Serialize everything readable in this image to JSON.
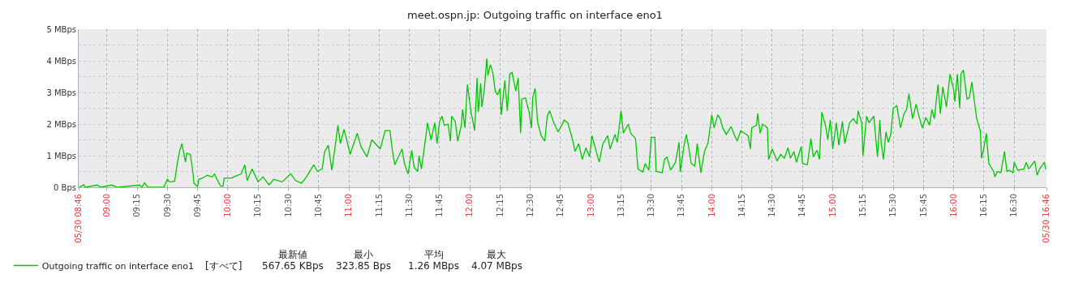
{
  "chart_data": {
    "type": "line",
    "title": "meet.ospn.jp: Outgoing traffic on interface eno1",
    "x": [
      8.77,
      8.81,
      8.82,
      8.92,
      8.95,
      9.04,
      9.09,
      9.27,
      9.29,
      9.31,
      9.34,
      9.47,
      9.5,
      9.52,
      9.56,
      9.58,
      9.6,
      9.62,
      9.65,
      9.66,
      9.69,
      9.71,
      9.72,
      9.75,
      9.76,
      9.79,
      9.83,
      9.87,
      9.89,
      9.91,
      9.94,
      9.96,
      9.97,
      10.03,
      10.07,
      10.11,
      10.14,
      10.16,
      10.2,
      10.25,
      10.29,
      10.34,
      10.38,
      10.45,
      10.52,
      10.56,
      10.61,
      10.65,
      10.71,
      10.74,
      10.78,
      10.8,
      10.83,
      10.86,
      10.89,
      10.91,
      10.93,
      10.96,
      10.99,
      11.01,
      11.07,
      11.1,
      11.15,
      11.19,
      11.26,
      11.3,
      11.34,
      11.36,
      11.38,
      11.44,
      11.46,
      11.49,
      11.52,
      11.54,
      11.57,
      11.58,
      11.6,
      11.63,
      11.64,
      11.65,
      11.68,
      11.71,
      11.73,
      11.75,
      11.77,
      11.79,
      11.82,
      11.84,
      11.85,
      11.88,
      11.9,
      11.93,
      11.94,
      11.96,
      11.98,
      12.01,
      12.03,
      12.04,
      12.06,
      12.07,
      12.09,
      12.1,
      12.12,
      12.14,
      12.15,
      12.17,
      12.19,
      12.21,
      12.23,
      12.25,
      12.26,
      12.29,
      12.31,
      12.33,
      12.35,
      12.38,
      12.4,
      12.42,
      12.43,
      12.46,
      12.49,
      12.51,
      12.52,
      12.54,
      12.56,
      12.59,
      12.62,
      12.64,
      12.66,
      12.69,
      12.73,
      12.76,
      12.78,
      12.81,
      12.85,
      12.87,
      12.9,
      12.93,
      12.96,
      12.99,
      13.01,
      13.04,
      13.07,
      13.1,
      13.14,
      13.16,
      13.2,
      13.22,
      13.25,
      13.27,
      13.31,
      13.33,
      13.37,
      13.39,
      13.43,
      13.45,
      13.48,
      13.5,
      13.53,
      13.54,
      13.59,
      13.61,
      13.63,
      13.66,
      13.7,
      13.73,
      13.74,
      13.77,
      13.79,
      13.81,
      13.83,
      13.86,
      13.88,
      13.91,
      13.94,
      13.97,
      14.0,
      14.02,
      14.05,
      14.07,
      14.09,
      14.12,
      14.16,
      14.19,
      14.21,
      14.24,
      14.27,
      14.3,
      14.32,
      14.33,
      14.37,
      14.38,
      14.4,
      14.42,
      14.46,
      14.47,
      14.5,
      14.54,
      14.57,
      14.6,
      14.63,
      14.65,
      14.68,
      14.7,
      14.74,
      14.75,
      14.79,
      14.82,
      14.84,
      14.87,
      14.89,
      14.91,
      14.94,
      14.96,
      14.98,
      15.0,
      15.03,
      15.05,
      15.08,
      15.1,
      15.14,
      15.17,
      15.2,
      15.21,
      15.24,
      15.25,
      15.28,
      15.3,
      15.34,
      15.35,
      15.37,
      15.39,
      15.4,
      15.42,
      15.44,
      15.46,
      15.48,
      15.5,
      15.53,
      15.56,
      15.59,
      15.61,
      15.63,
      15.66,
      15.69,
      15.71,
      15.74,
      15.77,
      15.8,
      15.82,
      15.84,
      15.87,
      15.89,
      15.91,
      15.94,
      15.96,
      15.97,
      16.0,
      16.01,
      16.03,
      16.05,
      16.06,
      16.08,
      16.11,
      16.13,
      16.15,
      16.17,
      16.19,
      16.22,
      16.23,
      16.25,
      16.27,
      16.29,
      16.33,
      16.34,
      16.36,
      16.39,
      16.42,
      16.44,
      16.46,
      16.49,
      16.5,
      16.53,
      16.58,
      16.6,
      16.62,
      16.67,
      16.69,
      16.71,
      16.75,
      16.76
    ],
    "series": [
      {
        "name": "Outgoing traffic on interface eno1",
        "color": "#00c800",
        "values": [
          0,
          0.08,
          0,
          0.07,
          0,
          0.07,
          0,
          0.07,
          0,
          0.14,
          0,
          0,
          0.25,
          0.17,
          0.19,
          0.71,
          1.13,
          1.38,
          0.79,
          1.08,
          1.04,
          0.5,
          0.13,
          0.02,
          0.25,
          0.29,
          0.38,
          0.33,
          0.42,
          0.25,
          0.04,
          0.03,
          0.29,
          0.29,
          0.36,
          0.42,
          0.71,
          0.21,
          0.58,
          0.17,
          0.33,
          0.08,
          0.25,
          0.17,
          0.43,
          0.21,
          0.13,
          0.33,
          0.71,
          0.5,
          0.58,
          1.13,
          1.33,
          0.54,
          1.38,
          1.96,
          1.38,
          1.83,
          1.38,
          1.04,
          1.71,
          1.29,
          0.96,
          1.5,
          1.21,
          1.79,
          1.79,
          1.17,
          0.71,
          1.21,
          0.75,
          0.42,
          1.17,
          0.63,
          0.5,
          1.0,
          0.58,
          1.42,
          1.71,
          2.04,
          1.5,
          2.04,
          1.38,
          2.08,
          2.25,
          1.96,
          2.0,
          1.46,
          2.25,
          2.08,
          1.46,
          1.96,
          2.46,
          1.88,
          3.25,
          2.38,
          2.0,
          1.79,
          3.46,
          2.38,
          3.29,
          2.54,
          3.08,
          4.07,
          3.54,
          3.88,
          3.63,
          3.04,
          2.92,
          3.13,
          2.29,
          3.38,
          2.42,
          3.58,
          3.63,
          3.04,
          3.46,
          1.71,
          2.79,
          2.83,
          2.38,
          1.88,
          2.83,
          3.13,
          2.08,
          1.63,
          1.46,
          2.25,
          2.42,
          2.08,
          1.75,
          1.96,
          2.13,
          2.04,
          1.5,
          1.13,
          1.38,
          0.88,
          1.25,
          0.96,
          1.63,
          1.21,
          0.79,
          1.38,
          1.63,
          1.21,
          1.67,
          1.42,
          2.42,
          1.71,
          2.0,
          1.71,
          1.54,
          0.58,
          0.48,
          0.75,
          0.54,
          1.58,
          1.58,
          0.5,
          0.46,
          0.88,
          0.96,
          0.54,
          0.79,
          1.42,
          0.48,
          1.29,
          1.67,
          1.25,
          0.75,
          0.67,
          1.38,
          0.46,
          1.13,
          1.42,
          2.29,
          1.88,
          2.29,
          2.17,
          1.88,
          1.67,
          1.92,
          1.63,
          1.46,
          1.79,
          1.71,
          1.63,
          1.21,
          1.88,
          1.96,
          2.33,
          1.71,
          2.0,
          1.88,
          0.88,
          1.21,
          0.83,
          1.04,
          0.92,
          1.25,
          0.92,
          1.13,
          0.79,
          1.29,
          0.75,
          0.71,
          1.54,
          0.96,
          1.17,
          0.88,
          2.38,
          1.96,
          1.5,
          2.13,
          1.21,
          2.04,
          1.33,
          2.08,
          1.38,
          2.04,
          2.17,
          2.0,
          2.42,
          2.04,
          1.0,
          2.25,
          2.04,
          2.25,
          1.79,
          0.96,
          2.13,
          1.42,
          0.88,
          1.75,
          1.42,
          1.67,
          2.5,
          2.58,
          1.88,
          2.33,
          2.46,
          2.96,
          2.17,
          2.63,
          2.29,
          1.88,
          2.21,
          1.96,
          2.46,
          2.17,
          3.25,
          2.33,
          3.17,
          2.54,
          3.25,
          3.58,
          3.08,
          2.71,
          3.58,
          2.5,
          3.58,
          3.71,
          2.79,
          2.83,
          3.33,
          2.75,
          2.17,
          1.79,
          0.92,
          1.25,
          1.71,
          0.75,
          0.5,
          0.33,
          0.5,
          0.46,
          1.13,
          0.5,
          0.54,
          0.46,
          0.79,
          0.54,
          0.58,
          0.79,
          0.58,
          0.83,
          0.38,
          0.58,
          0.79,
          0.57
        ]
      }
    ],
    "xlim": [
      8.767,
      16.767
    ],
    "xticks": [
      {
        "value": 8.767,
        "label": "05/30 08:46"
      },
      {
        "value": 9,
        "label": "09:00"
      },
      {
        "value": 9.25,
        "label": "09:15"
      },
      {
        "value": 9.5,
        "label": "09:30"
      },
      {
        "value": 9.75,
        "label": "09:45"
      },
      {
        "value": 10,
        "label": "10:00"
      },
      {
        "value": 10.25,
        "label": "10:15"
      },
      {
        "value": 10.5,
        "label": "10:30"
      },
      {
        "value": 10.75,
        "label": "10:45"
      },
      {
        "value": 11,
        "label": "11:00"
      },
      {
        "value": 11.25,
        "label": "11:15"
      },
      {
        "value": 11.5,
        "label": "11:30"
      },
      {
        "value": 11.75,
        "label": "11:45"
      },
      {
        "value": 12,
        "label": "12:00"
      },
      {
        "value": 12.25,
        "label": "12:15"
      },
      {
        "value": 12.5,
        "label": "12:30"
      },
      {
        "value": 12.75,
        "label": "12:45"
      },
      {
        "value": 13,
        "label": "13:00"
      },
      {
        "value": 13.25,
        "label": "13:15"
      },
      {
        "value": 13.5,
        "label": "13:30"
      },
      {
        "value": 13.75,
        "label": "13:45"
      },
      {
        "value": 14,
        "label": "14:00"
      },
      {
        "value": 14.25,
        "label": "14:15"
      },
      {
        "value": 14.5,
        "label": "14:30"
      },
      {
        "value": 14.75,
        "label": "14:45"
      },
      {
        "value": 15,
        "label": "15:00"
      },
      {
        "value": 15.25,
        "label": "15:15"
      },
      {
        "value": 15.5,
        "label": "15:30"
      },
      {
        "value": 15.75,
        "label": "15:45"
      },
      {
        "value": 16,
        "label": "16:00"
      },
      {
        "value": 16.25,
        "label": "16:15"
      },
      {
        "value": 16.5,
        "label": "16:30"
      },
      {
        "value": 16.767,
        "label": "05/30 16:46"
      }
    ],
    "ylim": [
      0,
      5
    ],
    "yticks": [
      {
        "value": 0,
        "label": "0 Bps"
      },
      {
        "value": 0.5,
        "label": null
      },
      {
        "value": 1,
        "label": "1 MBps"
      },
      {
        "value": 1.5,
        "label": null
      },
      {
        "value": 2,
        "label": "2 MBps"
      },
      {
        "value": 2.5,
        "label": null
      },
      {
        "value": 3,
        "label": "3 MBps"
      },
      {
        "value": 3.5,
        "label": null
      },
      {
        "value": 4,
        "label": "4 MBps"
      },
      {
        "value": 4.5,
        "label": null
      },
      {
        "value": 5,
        "label": "5 MBps"
      }
    ],
    "grid": true,
    "legend": "bottom left",
    "marker": "none",
    "line_style": "solid",
    "annotations": [
      "[すべて]",
      "最新値",
      "567.65 KBps",
      "最小",
      "323.85 Bps",
      "平均",
      "1.26 MBps",
      "最大",
      "4.07 MBps"
    ]
  }
}
